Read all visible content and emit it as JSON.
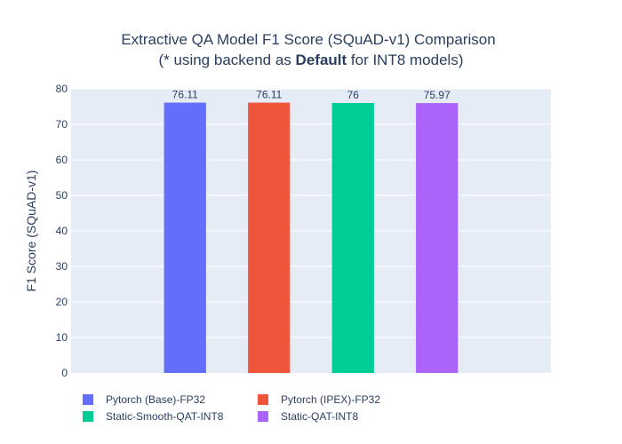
{
  "chart_data": {
    "type": "bar",
    "title_line1": "Extractive QA Model F1 Score (SQuAD-v1) Comparison",
    "title_line2_pre": "(* using backend as ",
    "title_line2_bold": "Default",
    "title_line2_post": " for INT8 models)",
    "xlabel": "",
    "ylabel": "F1 Score (SQuAD-v1)",
    "ylim": [
      0,
      80
    ],
    "yticks": [
      0,
      10,
      20,
      30,
      40,
      50,
      60,
      70,
      80
    ],
    "grid": true,
    "legend_position": "bottom",
    "series": [
      {
        "name": "Pytorch (Base)-FP32",
        "value": 76.11,
        "label": "76.11",
        "color": "#636efa"
      },
      {
        "name": "Pytorch (IPEX)-FP32",
        "value": 76.11,
        "label": "76.11",
        "color": "#ef553b"
      },
      {
        "name": "Static-Smooth-QAT-INT8",
        "value": 76,
        "label": "76",
        "color": "#00cc96"
      },
      {
        "name": "Static-QAT-INT8",
        "value": 75.97,
        "label": "75.97",
        "color": "#ab63fa"
      }
    ]
  }
}
